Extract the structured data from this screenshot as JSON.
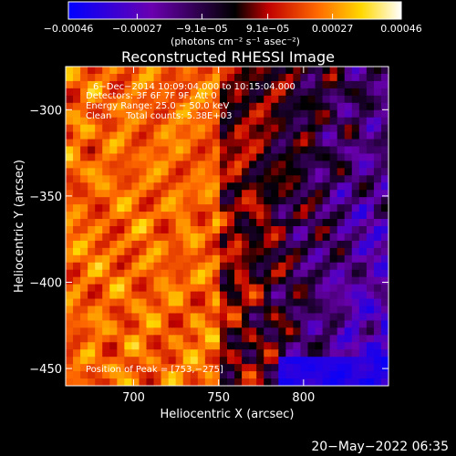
{
  "chart_data": {
    "type": "heatmap",
    "title": "Reconstructed RHESSI Image",
    "xlabel": "Heliocentric X (arcsec)",
    "ylabel": "Heliocentric Y (arcsec)",
    "xlim": [
      660,
      850
    ],
    "ylim": [
      -460,
      -275
    ],
    "x_ticks": [
      700,
      750,
      800
    ],
    "y_ticks": [
      -300,
      -350,
      -400,
      -450
    ],
    "x_tick_labels": [
      "700",
      "750",
      "800"
    ],
    "y_tick_labels": [
      "−300",
      "−350",
      "−400",
      "−450"
    ],
    "colorbar": {
      "range": [
        -0.00046,
        0.00046
      ],
      "tick_values": [
        -0.00046,
        -0.00027,
        -9.1e-05,
        9.1e-05,
        0.00027,
        0.00046
      ],
      "tick_labels": [
        "−0.00046",
        "−0.00027",
        "−9.1e−05",
        "9.1e−05",
        "0.00027",
        "0.00046"
      ],
      "unit": "(photons cm⁻² s⁻¹ asec⁻²)",
      "colors": [
        "#0000ff",
        "#6a00b0",
        "#000000",
        "#c00000",
        "#ff6a00",
        "#ffd800",
        "#ffffff"
      ]
    },
    "annotations": [
      "6−Dec−2014 10:09:04.000 to 10:15:04.000",
      "Detectors: 3F 6F 7F 9F, Att 0",
      "Energy Range: 25.0 − 50.0 keV",
      "Clean     Total counts: 5.38E+03"
    ],
    "peak_label": "Position of Peak = [753,−275]",
    "peak_position": [
      753,
      -275
    ]
  },
  "timestamp": "20−May−2022 06:35"
}
